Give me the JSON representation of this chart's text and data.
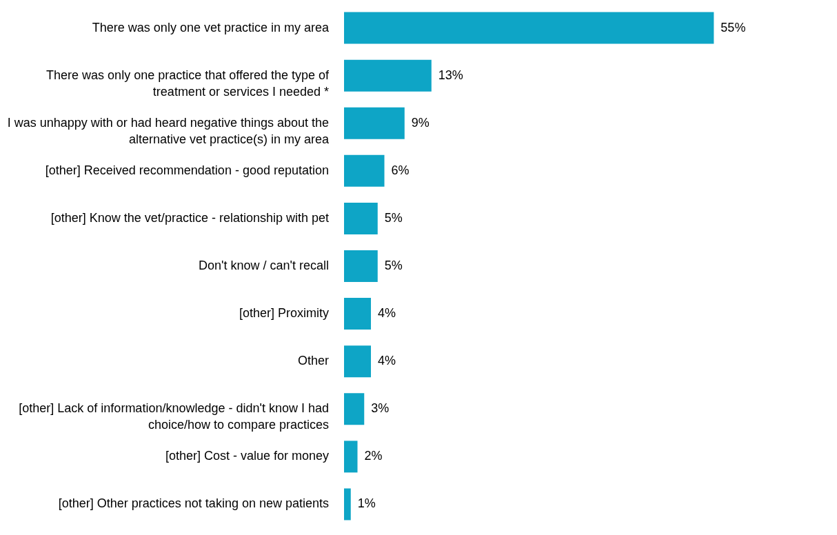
{
  "chart_data": {
    "type": "bar",
    "orientation": "horizontal",
    "color": "#0ea5c6",
    "value_labels": [
      "55%",
      "13%",
      "9%",
      "6%",
      "5%",
      "5%",
      "4%",
      "4%",
      "3%",
      "2%",
      "1%"
    ],
    "categories": [
      "There was only one vet practice in my area",
      "There was only one practice that offered the type of treatment or services I needed *",
      "I was unhappy with or had heard negative things about the alternative vet practice(s) in my area",
      "[other] Received recommendation - good reputation",
      "[other] Know the vet/practice - relationship with pet",
      "Don't know / can't recall",
      "[other] Proximity",
      "Other",
      "[other] Lack of information/knowledge - didn't know I had choice/how to compare practices",
      "[other] Cost - value for money",
      "[other] Other practices not taking on new patients"
    ],
    "values": [
      55,
      13,
      9,
      6,
      5,
      5,
      4,
      4,
      3,
      2,
      1
    ]
  }
}
